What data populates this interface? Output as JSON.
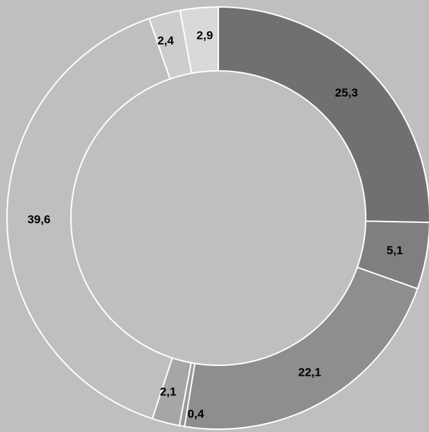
{
  "chart_data": {
    "type": "donut",
    "values": [
      25.3,
      5.1,
      22.1,
      0.4,
      2.1,
      39.6,
      2.4,
      2.9
    ],
    "labels": [
      "25,3",
      "5,1",
      "22,1",
      "0,4",
      "2,1",
      "39,6",
      "2,4",
      "2,9"
    ],
    "colors": [
      "#707070",
      "#7f7f7f",
      "#8e8e8e",
      "#9a9a9a",
      "#a6a6a6",
      "#bfbfbf",
      "#cdcdcd",
      "#d9d9d9"
    ],
    "legend": "none",
    "data_labels": true
  },
  "background_color": "#bfbfbf",
  "segment_stroke_color": "#ffffff"
}
